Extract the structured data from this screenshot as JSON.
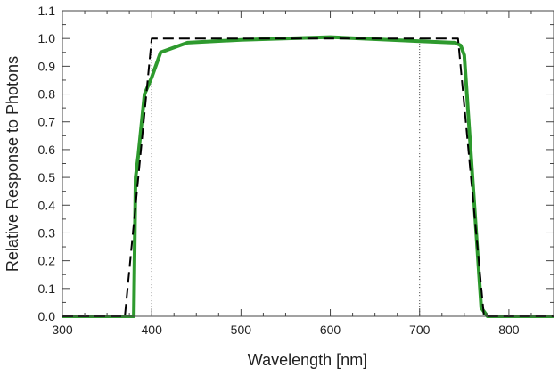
{
  "chart_data": {
    "type": "line",
    "title": "",
    "xlabel": "Wavelength [nm]",
    "ylabel": "Relative Response to Photons",
    "xlim": [
      300,
      850
    ],
    "ylim": [
      0,
      1.1
    ],
    "xticks": [
      300,
      400,
      500,
      600,
      700,
      800
    ],
    "xtick_labels": [
      "300",
      "400",
      "500",
      "600",
      "700",
      "800"
    ],
    "yticks": [
      0,
      0.1,
      0.2,
      0.3,
      0.4,
      0.5,
      0.6,
      0.7,
      0.8,
      0.9,
      1.0,
      1.1
    ],
    "ytick_labels": [
      "0.0",
      "0.1",
      "0.2",
      "0.3",
      "0.4",
      "0.5",
      "0.6",
      "0.7",
      "0.8",
      "0.9",
      "1.0",
      "1.1"
    ],
    "grid": false,
    "vertical_reference_lines": [
      400,
      700
    ],
    "series": [
      {
        "style": "solid",
        "color": "#2e9a2e",
        "x": [
          300,
          380,
          382,
          385,
          392,
          400,
          410,
          440,
          500,
          600,
          700,
          740,
          746,
          750,
          769,
          776,
          850
        ],
        "y": [
          0,
          0,
          0.5,
          0.58,
          0.8,
          0.86,
          0.95,
          0.985,
          0.995,
          1.005,
          0.99,
          0.985,
          0.975,
          0.94,
          0.03,
          0,
          0
        ]
      },
      {
        "style": "dashed",
        "color": "#000000",
        "x": [
          300,
          370,
          400,
          743,
          772,
          850
        ],
        "y": [
          0,
          0,
          1.0,
          1.0,
          0,
          0
        ]
      }
    ]
  }
}
